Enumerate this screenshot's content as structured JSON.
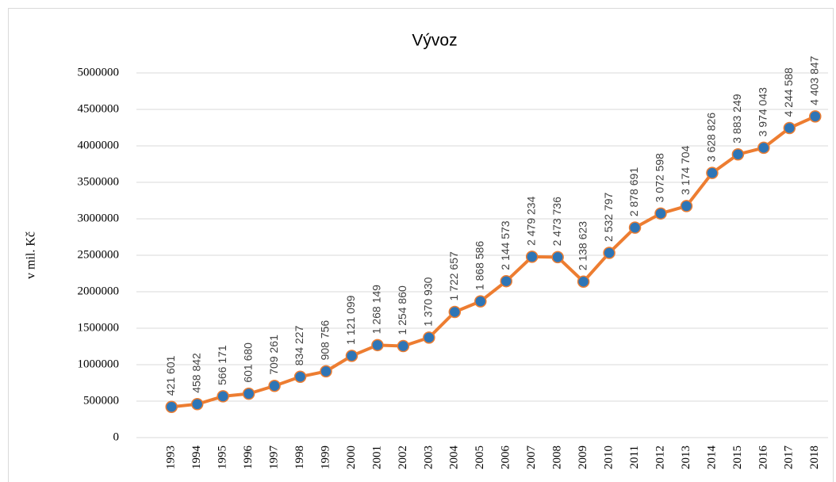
{
  "chart_data": {
    "type": "line",
    "title": "Vývoz",
    "y_label": "v mil. Kč",
    "categories": [
      "1993",
      "1994",
      "1995",
      "1996",
      "1997",
      "1998",
      "1999",
      "2000",
      "2001",
      "2002",
      "2003",
      "2004",
      "2005",
      "2006",
      "2007",
      "2008",
      "2009",
      "2010",
      "2011",
      "2012",
      "2013",
      "2014",
      "2015",
      "2016",
      "2017",
      "2018"
    ],
    "series": [
      {
        "name": "Vývoz",
        "color": "#ED7D31",
        "marker_color": "#2E75B6",
        "values": [
          421601,
          458842,
          566171,
          601680,
          709261,
          834227,
          908756,
          1121099,
          1268149,
          1254860,
          1370930,
          1722657,
          1868586,
          2144573,
          2479234,
          2473736,
          2138623,
          2532797,
          2878691,
          3072598,
          3174704,
          3628826,
          3883249,
          3974043,
          4244588,
          4403847
        ],
        "value_labels": [
          "421 601",
          "458 842",
          "566 171",
          "601 680",
          "709 261",
          "834 227",
          "908 756",
          "1 121 099",
          "1 268 149",
          "1 254 860",
          "1 370 930",
          "1 722 657",
          "1 868 586",
          "2 144 573",
          "2 479 234",
          "2 473 736",
          "2 138 623",
          "2 532 797",
          "2 878 691",
          "3 072 598",
          "3 174 704",
          "3 628 826",
          "3 883 249",
          "3 974 043",
          "4 244 588",
          "4 403 847"
        ]
      }
    ],
    "ylim": [
      0,
      5000000
    ],
    "yticks": [
      0,
      500000,
      1000000,
      1500000,
      2000000,
      2500000,
      3000000,
      3500000,
      4000000,
      4500000,
      5000000
    ],
    "grid": true
  }
}
